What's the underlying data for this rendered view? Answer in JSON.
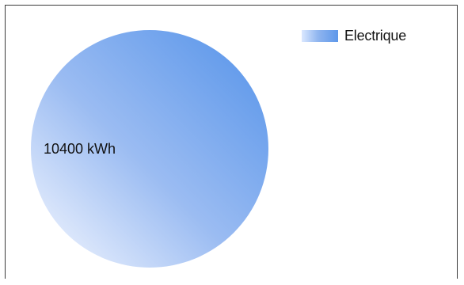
{
  "chart_data": {
    "type": "pie",
    "title": "",
    "slices": [
      {
        "name": "Electrique",
        "value": 10400,
        "label": "10400 kWh"
      }
    ],
    "legend": {
      "position": "top-right",
      "entries": [
        "Electrique"
      ]
    },
    "colors": {
      "gradient_light": "#eef3fe",
      "gradient_mid": "#9bbcf2",
      "gradient_dark": "#5a96ea"
    }
  }
}
